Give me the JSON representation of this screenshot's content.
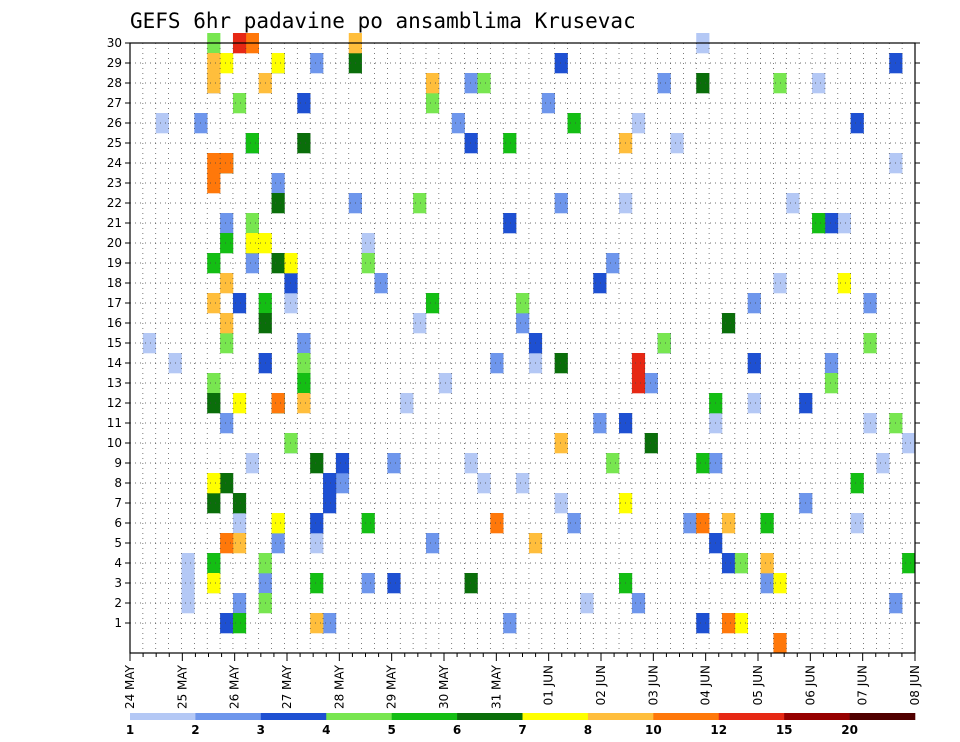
{
  "chart_data": {
    "type": "heatmap",
    "title": "GEFS 6hr padavine po ansamblima Krusevac",
    "xlabel": "",
    "ylabel": "",
    "x_tick_labels": [
      "24 MAY",
      "25 MAY",
      "26 MAY",
      "27 MAY",
      "28 MAY",
      "29 MAY",
      "30 MAY",
      "31 MAY",
      "01 JUN",
      "02 JUN",
      "03 JUN",
      "04 JUN",
      "05 JUN",
      "06 JUN",
      "07 JUN",
      "08 JUN"
    ],
    "time_steps": 61,
    "y_range": [
      0,
      30
    ],
    "y_ticks": [
      1,
      2,
      3,
      4,
      5,
      6,
      7,
      8,
      9,
      10,
      11,
      12,
      13,
      14,
      15,
      16,
      17,
      18,
      19,
      20,
      21,
      22,
      23,
      24,
      25,
      26,
      27,
      28,
      29,
      30
    ],
    "grid": true,
    "legend_position": "bottom",
    "colorbar": {
      "tick_labels": [
        "1",
        "2",
        "3",
        "4",
        "5",
        "6",
        "7",
        "8",
        "10",
        "12",
        "15",
        "20"
      ],
      "colors": [
        "#b4c8f5",
        "#6e96ec",
        "#1e50d2",
        "#78e650",
        "#14be14",
        "#0a6e0a",
        "#ffff00",
        "#ffbe3c",
        "#ff780a",
        "#e62814",
        "#960000",
        "#500000"
      ]
    },
    "levels": [
      {
        "color": "#b4c8f5",
        "cells": [
          [
            4,
            3
          ],
          [
            4,
            2
          ],
          [
            4,
            4
          ],
          [
            9,
            9
          ],
          [
            18,
            20
          ],
          [
            14,
            5
          ],
          [
            22,
            16
          ],
          [
            26,
            9
          ],
          [
            30,
            8
          ],
          [
            31,
            14
          ],
          [
            35,
            2
          ],
          [
            38,
            22
          ],
          [
            42,
            25
          ],
          [
            44,
            30
          ],
          [
            46,
            16
          ],
          [
            47,
            4
          ],
          [
            48,
            12
          ],
          [
            50,
            18
          ],
          [
            53,
            28
          ],
          [
            55,
            21
          ],
          [
            56,
            6
          ],
          [
            57,
            11
          ],
          [
            58,
            9
          ],
          [
            3,
            14
          ],
          [
            2,
            26
          ],
          [
            1,
            15
          ],
          [
            6,
            3
          ],
          [
            8,
            6
          ],
          [
            12,
            17
          ],
          [
            21,
            12
          ],
          [
            24,
            13
          ],
          [
            27,
            8
          ],
          [
            33,
            7
          ],
          [
            39,
            26
          ],
          [
            45,
            11
          ],
          [
            51,
            22
          ],
          [
            59,
            24
          ],
          [
            60,
            10
          ]
        ]
      },
      {
        "color": "#6e96ec",
        "cells": [
          [
            6,
            28
          ],
          [
            7,
            21
          ],
          [
            8,
            2
          ],
          [
            9,
            19
          ],
          [
            10,
            3
          ],
          [
            11,
            23
          ],
          [
            12,
            10
          ],
          [
            13,
            15
          ],
          [
            15,
            1
          ],
          [
            16,
            8
          ],
          [
            17,
            22
          ],
          [
            19,
            18
          ],
          [
            20,
            9
          ],
          [
            23,
            5
          ],
          [
            25,
            26
          ],
          [
            28,
            14
          ],
          [
            29,
            1
          ],
          [
            32,
            27
          ],
          [
            34,
            6
          ],
          [
            36,
            11
          ],
          [
            37,
            19
          ],
          [
            40,
            13
          ],
          [
            41,
            28
          ],
          [
            43,
            6
          ],
          [
            45,
            9
          ],
          [
            49,
            3
          ],
          [
            52,
            7
          ],
          [
            54,
            14
          ],
          [
            57,
            17
          ],
          [
            59,
            2
          ],
          [
            5,
            26
          ],
          [
            7,
            11
          ],
          [
            11,
            5
          ],
          [
            14,
            29
          ],
          [
            18,
            3
          ],
          [
            26,
            28
          ],
          [
            30,
            16
          ],
          [
            33,
            22
          ],
          [
            39,
            2
          ],
          [
            48,
            17
          ]
        ]
      },
      {
        "color": "#1e50d2",
        "cells": [
          [
            7,
            1
          ],
          [
            8,
            17
          ],
          [
            9,
            25
          ],
          [
            10,
            14
          ],
          [
            11,
            12
          ],
          [
            13,
            27
          ],
          [
            14,
            6
          ],
          [
            15,
            7
          ],
          [
            16,
            9
          ],
          [
            20,
            3
          ],
          [
            23,
            28
          ],
          [
            26,
            25
          ],
          [
            29,
            21
          ],
          [
            31,
            15
          ],
          [
            33,
            29
          ],
          [
            36,
            18
          ],
          [
            38,
            11
          ],
          [
            41,
            15
          ],
          [
            44,
            1
          ],
          [
            45,
            5
          ],
          [
            46,
            4
          ],
          [
            48,
            14
          ],
          [
            52,
            12
          ],
          [
            54,
            21
          ],
          [
            56,
            26
          ],
          [
            59,
            29
          ],
          [
            11,
            29
          ],
          [
            12,
            18
          ],
          [
            15,
            8
          ]
        ]
      },
      {
        "color": "#78e650",
        "cells": [
          [
            6,
            30
          ],
          [
            7,
            15
          ],
          [
            8,
            27
          ],
          [
            9,
            21
          ],
          [
            10,
            2
          ],
          [
            11,
            6
          ],
          [
            12,
            10
          ],
          [
            13,
            14
          ],
          [
            18,
            19
          ],
          [
            22,
            22
          ],
          [
            23,
            27
          ],
          [
            27,
            28
          ],
          [
            30,
            17
          ],
          [
            37,
            9
          ],
          [
            41,
            15
          ],
          [
            47,
            4
          ],
          [
            50,
            28
          ],
          [
            54,
            13
          ],
          [
            57,
            15
          ],
          [
            59,
            11
          ],
          [
            6,
            13
          ],
          [
            10,
            4
          ]
        ]
      },
      {
        "color": "#14be14",
        "cells": [
          [
            6,
            19
          ],
          [
            7,
            20
          ],
          [
            8,
            1
          ],
          [
            9,
            25
          ],
          [
            10,
            17
          ],
          [
            11,
            12
          ],
          [
            13,
            13
          ],
          [
            14,
            3
          ],
          [
            18,
            6
          ],
          [
            23,
            17
          ],
          [
            29,
            25
          ],
          [
            34,
            26
          ],
          [
            38,
            3
          ],
          [
            44,
            9
          ],
          [
            45,
            12
          ],
          [
            49,
            6
          ],
          [
            53,
            21
          ],
          [
            56,
            8
          ],
          [
            60,
            4
          ],
          [
            6,
            4
          ]
        ]
      },
      {
        "color": "#0a6e0a",
        "cells": [
          [
            6,
            12
          ],
          [
            7,
            24
          ],
          [
            8,
            7
          ],
          [
            9,
            20
          ],
          [
            10,
            16
          ],
          [
            11,
            19
          ],
          [
            13,
            25
          ],
          [
            14,
            9
          ],
          [
            17,
            29
          ],
          [
            26,
            3
          ],
          [
            33,
            14
          ],
          [
            40,
            10
          ],
          [
            44,
            28
          ],
          [
            46,
            16
          ],
          [
            6,
            7
          ],
          [
            7,
            8
          ],
          [
            11,
            22
          ]
        ]
      },
      {
        "color": "#ffff00",
        "cells": [
          [
            6,
            3
          ],
          [
            7,
            29
          ],
          [
            8,
            12
          ],
          [
            11,
            6
          ],
          [
            11,
            29
          ],
          [
            12,
            19
          ],
          [
            38,
            7
          ],
          [
            47,
            1
          ],
          [
            50,
            3
          ],
          [
            55,
            18
          ],
          [
            6,
            8
          ],
          [
            10,
            20
          ],
          [
            9,
            20
          ]
        ]
      },
      {
        "color": "#ffbe3c",
        "cells": [
          [
            6,
            28
          ],
          [
            7,
            16
          ],
          [
            8,
            5
          ],
          [
            10,
            28
          ],
          [
            13,
            12
          ],
          [
            14,
            1
          ],
          [
            17,
            30
          ],
          [
            23,
            28
          ],
          [
            31,
            5
          ],
          [
            33,
            10
          ],
          [
            38,
            25
          ],
          [
            46,
            6
          ],
          [
            49,
            4
          ],
          [
            6,
            17
          ],
          [
            7,
            18
          ],
          [
            6,
            29
          ]
        ]
      },
      {
        "color": "#ff780a",
        "cells": [
          [
            6,
            24
          ],
          [
            7,
            24
          ],
          [
            7,
            5
          ],
          [
            9,
            30
          ],
          [
            11,
            12
          ],
          [
            28,
            6
          ],
          [
            44,
            6
          ],
          [
            46,
            1
          ],
          [
            50,
            0
          ],
          [
            6,
            23
          ]
        ]
      },
      {
        "color": "#e62814",
        "cells": [
          [
            8,
            30
          ],
          [
            39,
            13
          ],
          [
            39,
            14
          ]
        ]
      }
    ]
  }
}
